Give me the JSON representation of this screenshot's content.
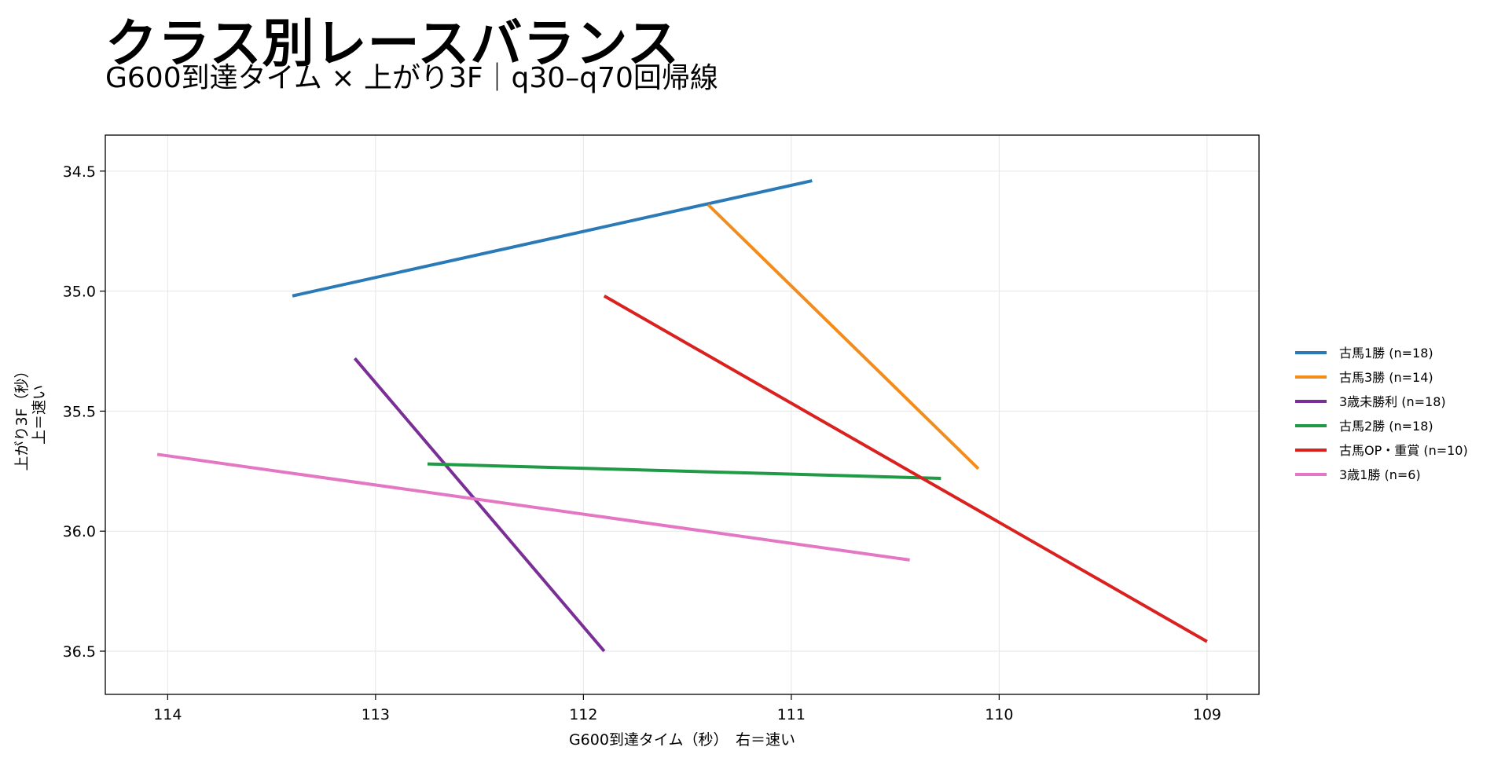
{
  "title": "クラス別レースバランス",
  "subtitle": "G600到達タイム × 上がり3F｜q30–q70回帰線",
  "chart_data": {
    "type": "line",
    "xlabel": "G600到達タイム（秒）　右＝速い",
    "ylabel": [
      "上がり3F（秒）",
      "上＝速い"
    ],
    "xlim": [
      114.3,
      108.75
    ],
    "ylim": [
      36.68,
      34.35
    ],
    "x_inverted": true,
    "y_inverted": true,
    "xticks": [
      114,
      113,
      112,
      111,
      110,
      109
    ],
    "yticks": [
      34.5,
      35.0,
      35.5,
      36.0,
      36.5
    ],
    "ytick_labels": [
      "34.5",
      "35.0",
      "35.5",
      "36.0",
      "36.5"
    ],
    "grid": true,
    "legend_placement": "right, outside plot",
    "series": [
      {
        "name": "古馬1勝 (n=18)",
        "color": "#2a7ab8",
        "x": [
          113.4,
          110.9
        ],
        "y": [
          35.02,
          34.54
        ]
      },
      {
        "name": "古馬3勝 (n=14)",
        "color": "#f28d1c",
        "x": [
          111.4,
          110.1
        ],
        "y": [
          34.64,
          35.74
        ]
      },
      {
        "name": "3歳未勝利 (n=18)",
        "color": "#7a2f96",
        "x": [
          113.1,
          111.9
        ],
        "y": [
          35.28,
          36.5
        ]
      },
      {
        "name": "古馬2勝 (n=18)",
        "color": "#1f9a45",
        "x": [
          112.75,
          110.28
        ],
        "y": [
          35.72,
          35.78
        ]
      },
      {
        "name": "古馬OP・重賞 (n=10)",
        "color": "#d9211f",
        "x": [
          111.9,
          109.0
        ],
        "y": [
          35.02,
          36.46
        ]
      },
      {
        "name": "3歳1勝 (n=6)",
        "color": "#e477c4",
        "x": [
          114.05,
          110.43
        ],
        "y": [
          35.68,
          36.12
        ]
      }
    ]
  }
}
